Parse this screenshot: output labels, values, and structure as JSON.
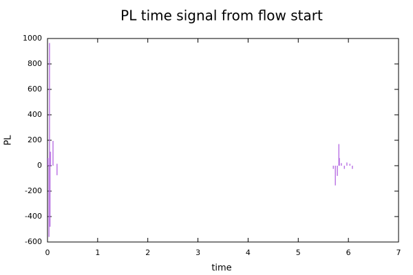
{
  "chart_data": {
    "type": "impulse",
    "title": "PL time signal from flow start",
    "x_label": "time",
    "y_label": "PL",
    "x": [
      0.01,
      0.03,
      0.04,
      0.05,
      0.06,
      0.11,
      0.19,
      0.19,
      5.7,
      5.74,
      5.78,
      5.81,
      5.82,
      5.86,
      5.92,
      5.97,
      6.03,
      6.08
    ],
    "values": [
      60,
      -560,
      965,
      -480,
      110,
      195,
      -75,
      15,
      -25,
      -155,
      -80,
      170,
      60,
      20,
      -25,
      25,
      15,
      -25
    ],
    "color": "#b060e0",
    "xlim": [
      0,
      7
    ],
    "xticks": [
      0,
      1,
      2,
      3,
      4,
      5,
      6,
      7
    ],
    "ylim": [
      -600,
      1000
    ],
    "yticks": [
      -600,
      -400,
      -200,
      0,
      200,
      400,
      600,
      800,
      1000
    ],
    "grid": false
  }
}
